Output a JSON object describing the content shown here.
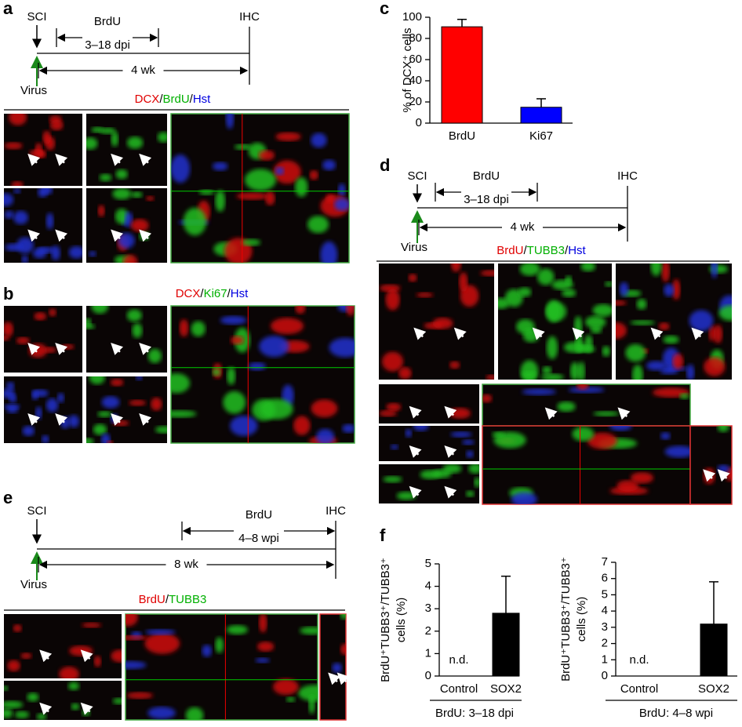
{
  "panels": {
    "a": {
      "label": "a",
      "timeline": {
        "start": "SCI",
        "inject": "Virus",
        "end": "IHC",
        "pulse": "BrdU",
        "pulse_range": "3–18 dpi",
        "duration": "4 wk"
      },
      "stain": [
        {
          "text": "DCX",
          "color": "#e00000"
        },
        {
          "text": "/",
          "color": "#000000"
        },
        {
          "text": "BrdU",
          "color": "#00b000"
        },
        {
          "text": "/",
          "color": "#000000"
        },
        {
          "text": "Hst",
          "color": "#0000e0"
        }
      ]
    },
    "b": {
      "label": "b",
      "stain": [
        {
          "text": "DCX",
          "color": "#e00000"
        },
        {
          "text": "/",
          "color": "#000000"
        },
        {
          "text": "Ki67",
          "color": "#00b000"
        },
        {
          "text": "/",
          "color": "#000000"
        },
        {
          "text": "Hst",
          "color": "#0000e0"
        }
      ]
    },
    "d": {
      "label": "d",
      "timeline": {
        "start": "SCI",
        "inject": "Virus",
        "end": "IHC",
        "pulse": "BrdU",
        "pulse_range": "3–18 dpi",
        "duration": "4 wk"
      },
      "stain": [
        {
          "text": "BrdU",
          "color": "#e00000"
        },
        {
          "text": "/",
          "color": "#000000"
        },
        {
          "text": "TUBB3",
          "color": "#00b000"
        },
        {
          "text": "/",
          "color": "#000000"
        },
        {
          "text": "Hst",
          "color": "#0000e0"
        }
      ]
    },
    "e": {
      "label": "e",
      "timeline": {
        "start": "SCI",
        "inject": "Virus",
        "end": "IHC",
        "pulse": "BrdU",
        "pulse_range": "4–8 wpi",
        "duration": "8 wk"
      },
      "stain": [
        {
          "text": "BrdU",
          "color": "#e00000"
        },
        {
          "text": "/",
          "color": "#000000"
        },
        {
          "text": "TUBB3",
          "color": "#00b000"
        }
      ]
    },
    "c": {
      "label": "c"
    },
    "f": {
      "label": "f"
    }
  },
  "chart_data": [
    {
      "type": "bar",
      "y_label": [
        "% of DCX⁺ cells"
      ],
      "categories": [
        "BrdU",
        "Ki67"
      ],
      "values": [
        91,
        15
      ],
      "errors": [
        7,
        8
      ],
      "colors": [
        "#ff0000",
        "#0000ff"
      ],
      "ylim": [
        0,
        100
      ],
      "yticks": [
        0,
        20,
        40,
        60,
        80,
        100
      ]
    },
    {
      "type": "bar",
      "y_label": [
        "BrdU⁺TUBB3⁺/TUBB3⁺",
        "cells (%)"
      ],
      "x_label": "BrdU: 3–18 dpi",
      "categories": [
        "Control",
        "SOX2"
      ],
      "values": [
        null,
        2.8
      ],
      "value_labels": [
        "n.d.",
        null
      ],
      "errors": [
        null,
        1.65
      ],
      "colors": [
        "#000000",
        "#000000"
      ],
      "ylim": [
        0,
        5
      ],
      "yticks": [
        0,
        1,
        2,
        3,
        4,
        5
      ]
    },
    {
      "type": "bar",
      "y_label": [
        "BrdU⁺TUBB3⁺/TUBB3⁺",
        "cells (%)"
      ],
      "x_label": "BrdU: 4–8 wpi",
      "categories": [
        "Control",
        "SOX2"
      ],
      "values": [
        null,
        3.2
      ],
      "value_labels": [
        "n.d.",
        null
      ],
      "errors": [
        null,
        2.6
      ],
      "colors": [
        "#000000",
        "#000000"
      ],
      "ylim": [
        0,
        7
      ],
      "yticks": [
        0,
        1,
        2,
        3,
        4,
        5,
        6,
        7
      ]
    }
  ]
}
